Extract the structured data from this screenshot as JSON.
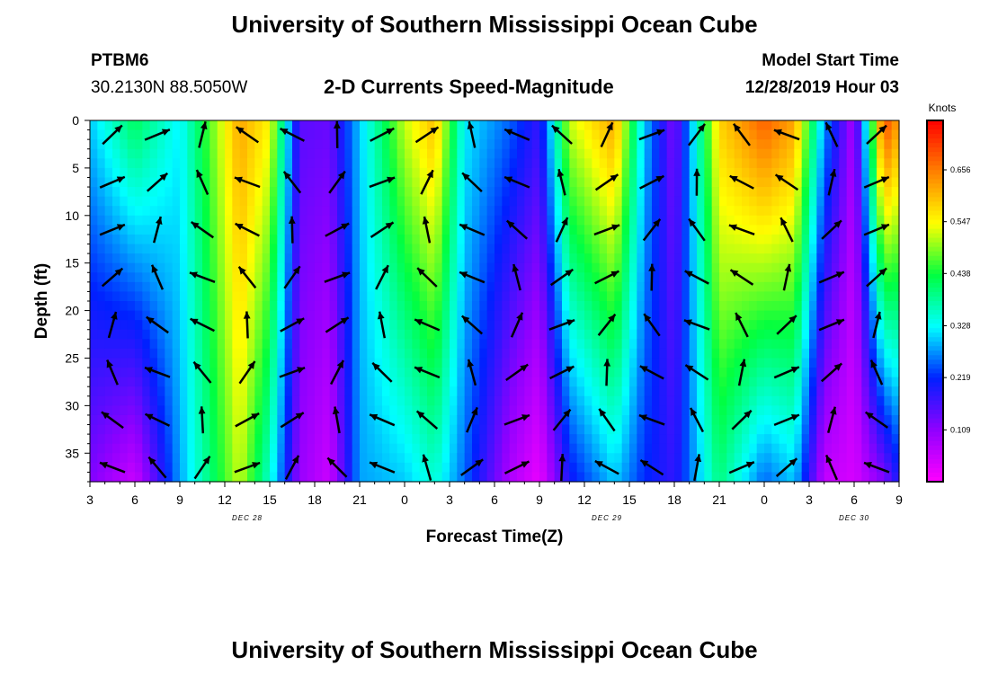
{
  "header": {
    "title": "University of Southern Mississippi Ocean Cube",
    "station": "PTBM6",
    "coords": "30.2130N 88.5050W",
    "subtitle": "2-D Currents Speed-Magnitude",
    "start_label": "Model Start Time",
    "start_value": "12/28/2019 Hour 03"
  },
  "footer": {
    "title": "University of Southern Mississippi Ocean Cube"
  },
  "chart_data": {
    "type": "heatmap",
    "title": "2-D Currents Speed-Magnitude",
    "xlabel": "Forecast Time(Z)",
    "ylabel": "Depth (ft)",
    "x_ticks": [
      "3",
      "6",
      "9",
      "12",
      "15",
      "18",
      "21",
      "0",
      "3",
      "6",
      "9",
      "12",
      "15",
      "18",
      "21",
      "0",
      "3",
      "6",
      "9"
    ],
    "date_labels": [
      {
        "label": "DEC 28",
        "at_tick": 3.5
      },
      {
        "label": "DEC 29",
        "at_tick": 11.5
      },
      {
        "label": "DEC 30",
        "at_tick": 17
      }
    ],
    "y_ticks": [
      0,
      5,
      10,
      15,
      20,
      25,
      30,
      35
    ],
    "ylim": [
      0,
      38
    ],
    "xlim": [
      0,
      54
    ],
    "colorbar": {
      "unit_label": "Knots",
      "ticks": [
        "0.656",
        "0.547",
        "0.438",
        "0.328",
        "0.219",
        "0.109"
      ],
      "tick_values": [
        0.656,
        0.547,
        0.438,
        0.328,
        0.219,
        0.109
      ],
      "range": [
        0,
        0.76
      ]
    },
    "columns": [
      {
        "h": 0,
        "top": 0.3,
        "bottom": 0.12
      },
      {
        "h": 3,
        "top": 0.42,
        "bottom": 0.05
      },
      {
        "h": 6,
        "top": 0.32,
        "bottom": 0.28
      },
      {
        "h": 10,
        "top": 0.62,
        "bottom": 0.52
      },
      {
        "h": 12,
        "top": 0.55,
        "bottom": 0.35
      },
      {
        "h": 14,
        "top": 0.15,
        "bottom": 0.1
      },
      {
        "h": 16,
        "top": 0.14,
        "bottom": 0.05
      },
      {
        "h": 18,
        "top": 0.3,
        "bottom": 0.28
      },
      {
        "h": 21,
        "top": 0.52,
        "bottom": 0.3
      },
      {
        "h": 23,
        "top": 0.6,
        "bottom": 0.35
      },
      {
        "h": 25,
        "top": 0.32,
        "bottom": 0.25
      },
      {
        "h": 28,
        "top": 0.25,
        "bottom": 0.08
      },
      {
        "h": 30,
        "top": 0.18,
        "bottom": 0.02
      },
      {
        "h": 32,
        "top": 0.52,
        "bottom": 0.2
      },
      {
        "h": 35,
        "top": 0.62,
        "bottom": 0.3
      },
      {
        "h": 37,
        "top": 0.3,
        "bottom": 0.22
      },
      {
        "h": 39,
        "top": 0.12,
        "bottom": 0.18
      },
      {
        "h": 42,
        "top": 0.58,
        "bottom": 0.4
      },
      {
        "h": 45,
        "top": 0.68,
        "bottom": 0.25
      },
      {
        "h": 47,
        "top": 0.62,
        "bottom": 0.3
      },
      {
        "h": 49,
        "top": 0.28,
        "bottom": 0.06
      },
      {
        "h": 51,
        "top": 0.08,
        "bottom": 0.04
      },
      {
        "h": 53,
        "top": 0.7,
        "bottom": 0.12
      },
      {
        "h": 54,
        "top": 0.62,
        "bottom": 0.2
      }
    ]
  },
  "colors": {
    "accent": "#000000",
    "colormap": [
      "#ff00ff",
      "#9000ff",
      "#0020ff",
      "#00ffff",
      "#00ff40",
      "#ffff00",
      "#ff8000",
      "#ff0000"
    ]
  }
}
